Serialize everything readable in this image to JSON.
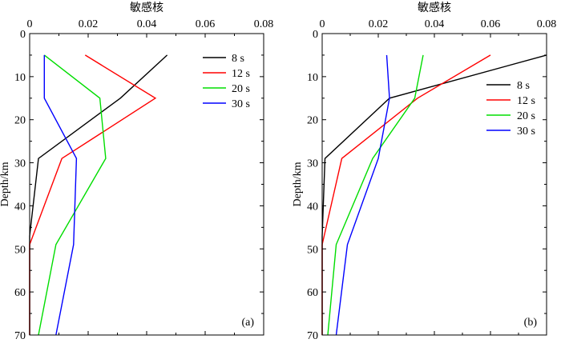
{
  "chart_data": [
    {
      "type": "line",
      "panel_label": "(a)",
      "title": "敏感核",
      "xlabel": "",
      "ylabel": "Depth/km",
      "xlim": [
        0,
        0.08
      ],
      "ylim": [
        0,
        70
      ],
      "y_inverted": true,
      "x_axis_position": "top",
      "xticks": [
        "0",
        "0.02",
        "0.04",
        "0.06",
        "0.08"
      ],
      "yticks": [
        "0",
        "10",
        "20",
        "30",
        "40",
        "50",
        "60",
        "70"
      ],
      "legend_position": "top-right",
      "series": [
        {
          "name": "8 s",
          "color": "#000000",
          "x": [
            0.047,
            0.031,
            0.003,
            0.0,
            0.0,
            0.0
          ],
          "y": [
            5,
            15,
            29,
            47,
            60,
            70
          ]
        },
        {
          "name": "12 s",
          "color": "#ff0000",
          "x": [
            0.019,
            0.043,
            0.011,
            0.0,
            0.0
          ],
          "y": [
            5,
            15,
            29,
            49,
            70
          ]
        },
        {
          "name": "20 s",
          "color": "#00dd00",
          "x": [
            0.005,
            0.024,
            0.026,
            0.009,
            0.003
          ],
          "y": [
            5,
            15,
            29,
            49,
            70
          ]
        },
        {
          "name": "30 s",
          "color": "#0000ff",
          "x": [
            0.005,
            0.005,
            0.016,
            0.015,
            0.009
          ],
          "y": [
            5,
            15,
            29,
            49,
            70
          ]
        }
      ]
    },
    {
      "type": "line",
      "panel_label": "(b)",
      "title": "敏感核",
      "xlabel": "",
      "ylabel": "Depth/km",
      "xlim": [
        0,
        0.08
      ],
      "ylim": [
        0,
        70
      ],
      "y_inverted": true,
      "x_axis_position": "top",
      "xticks": [
        "0",
        "0.02",
        "0.04",
        "0.06",
        "0.08"
      ],
      "yticks": [
        "0",
        "10",
        "20",
        "30",
        "40",
        "50",
        "60",
        "70"
      ],
      "legend_position": "top-right",
      "series": [
        {
          "name": "8 s",
          "color": "#000000",
          "x": [
            0.08,
            0.024,
            0.001,
            0.0,
            0.0
          ],
          "y": [
            5,
            15,
            29,
            47,
            70
          ]
        },
        {
          "name": "12 s",
          "color": "#ff0000",
          "x": [
            0.06,
            0.034,
            0.007,
            0.0,
            0.0
          ],
          "y": [
            5,
            15,
            29,
            49,
            70
          ]
        },
        {
          "name": "20 s",
          "color": "#00dd00",
          "x": [
            0.036,
            0.033,
            0.018,
            0.005,
            0.002
          ],
          "y": [
            5,
            15,
            29,
            49,
            70
          ]
        },
        {
          "name": "30 s",
          "color": "#0000ff",
          "x": [
            0.023,
            0.024,
            0.02,
            0.009,
            0.005
          ],
          "y": [
            5,
            15,
            29,
            49,
            70
          ]
        }
      ]
    }
  ]
}
